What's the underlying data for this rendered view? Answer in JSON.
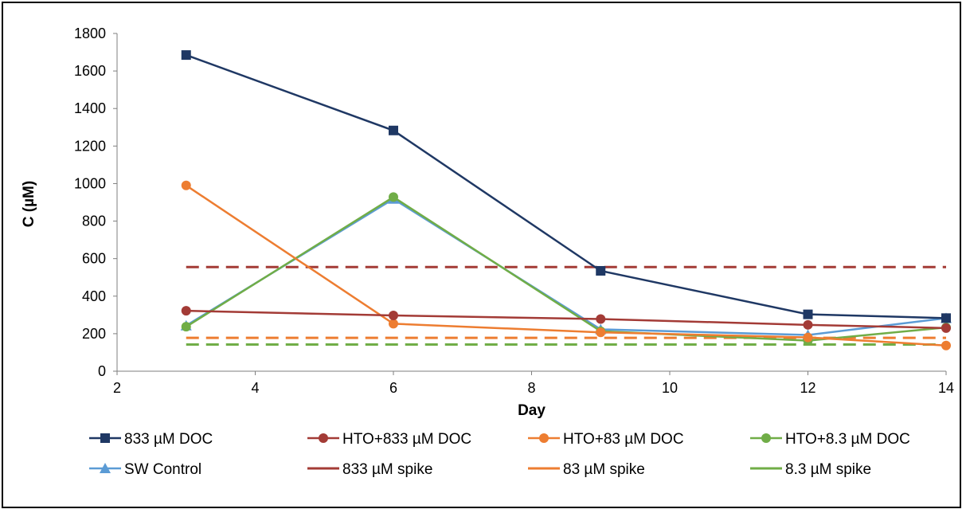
{
  "chart_data": {
    "type": "line",
    "title": "",
    "xlabel": "Day",
    "ylabel": "C (µM)",
    "xlim": [
      2,
      14
    ],
    "ylim": [
      0,
      1800
    ],
    "x_ticks": [
      "2",
      "4",
      "6",
      "8",
      "10",
      "12",
      "14"
    ],
    "y_ticks": [
      "0",
      "200",
      "400",
      "600",
      "800",
      "1000",
      "1200",
      "1400",
      "1600",
      "1800"
    ],
    "grid": false,
    "legend_position": "bottom",
    "series": [
      {
        "name": "833 µM DOC",
        "color": "#1f3864",
        "marker": "square",
        "dash": false,
        "x": [
          3,
          6,
          9,
          12,
          14
        ],
        "y": [
          1685,
          1283,
          535,
          303,
          283
        ]
      },
      {
        "name": "HTO+833 µM  DOC",
        "color": "#a33b36",
        "marker": "circle",
        "dash": false,
        "x": [
          3,
          6,
          9,
          12,
          14
        ],
        "y": [
          322,
          297,
          278,
          247,
          230
        ]
      },
      {
        "name": "HTO+83 µM DOC",
        "color": "#ed7d31",
        "marker": "circle",
        "dash": false,
        "x": [
          3,
          6,
          9,
          12,
          14
        ],
        "y": [
          990,
          253,
          207,
          180,
          137
        ]
      },
      {
        "name": "HTO+8.3 µM DOC",
        "color": "#70ad47",
        "marker": "circle",
        "dash": false,
        "x": [
          3,
          6,
          9,
          12,
          14
        ],
        "y": [
          237,
          928,
          213,
          163,
          233
        ]
      },
      {
        "name": "SW Control",
        "color": "#5b9bd5",
        "marker": "triangle",
        "dash": false,
        "x": [
          3,
          6,
          9,
          12,
          14
        ],
        "y": [
          243,
          918,
          223,
          193,
          283
        ]
      },
      {
        "name": "833 µM  spike",
        "color": "#a33b36",
        "marker": "none",
        "dash": true,
        "x": [
          3,
          14
        ],
        "y": [
          555,
          555
        ]
      },
      {
        "name": "83 µM spike",
        "color": "#ed7d31",
        "marker": "none",
        "dash": true,
        "x": [
          3,
          14
        ],
        "y": [
          178,
          178
        ]
      },
      {
        "name": "8.3 µM spike",
        "color": "#70ad47",
        "marker": "none",
        "dash": true,
        "x": [
          3,
          14
        ],
        "y": [
          142,
          142
        ]
      }
    ]
  }
}
